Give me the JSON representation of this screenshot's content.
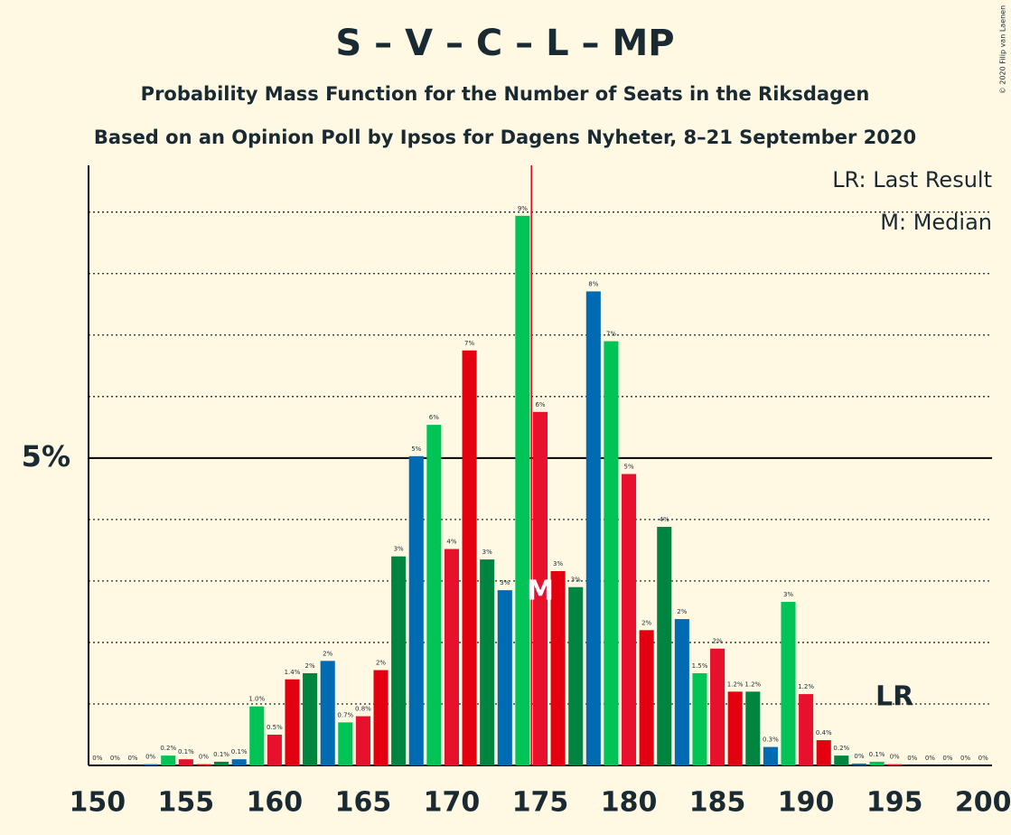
{
  "chart_data": {
    "type": "bar",
    "title": "S – V – C – L – MP",
    "subtitle": "Probability Mass Function for the Number of Seats in the Riksdagen",
    "subtitle2": "Based on an Opinion Poll by Ipsos for Dagens Nyheter, 8–21 September 2020",
    "credit": "© 2020 Filip van Laenen",
    "legend": [
      "LR: Last Result",
      "M: Median"
    ],
    "x": [
      150,
      151,
      152,
      153,
      154,
      155,
      156,
      157,
      158,
      159,
      160,
      161,
      162,
      163,
      164,
      165,
      166,
      167,
      168,
      169,
      170,
      171,
      172,
      173,
      174,
      175,
      176,
      177,
      178,
      179,
      180,
      181,
      182,
      183,
      184,
      185,
      186,
      187,
      188,
      189,
      190,
      191,
      192,
      193,
      194,
      195,
      196,
      197,
      198,
      199,
      200
    ],
    "values": [
      0,
      0,
      0,
      0.02,
      0.16,
      0.1,
      0.02,
      0.06,
      0.1,
      0.96,
      0.5,
      1.4,
      1.5,
      1.7,
      0.7,
      0.8,
      1.55,
      3.4,
      5.03,
      5.54,
      3.52,
      6.75,
      3.35,
      2.85,
      8.94,
      5.75,
      3.16,
      2.9,
      7.71,
      6.9,
      4.74,
      2.2,
      3.88,
      2.38,
      1.5,
      1.9,
      1.2,
      1.2,
      0.3,
      2.66,
      1.16,
      0.41,
      0.16,
      0.03,
      0.06,
      0.02,
      0,
      0,
      0,
      0,
      0
    ],
    "value_labels": [
      "0%",
      "0%",
      "0%",
      "0%",
      "0.2%",
      "0.1%",
      "0%",
      "0.1%",
      "0.1%",
      "1.0%",
      "0.5%",
      "1.4%",
      "2%",
      "2%",
      "0.7%",
      "0.8%",
      "2%",
      "3%",
      "5%",
      "6%",
      "4%",
      "7%",
      "3%",
      "3%",
      "9%",
      "6%",
      "3%",
      "3%",
      "8%",
      "7%",
      "5%",
      "2%",
      "4%",
      "2%",
      "1.5%",
      "2%",
      "1.2%",
      "1.2%",
      "0.3%",
      "3%",
      "1.2%",
      "0.4%",
      "0.2%",
      "0%",
      "0.1%",
      "0%",
      "0%",
      "0%",
      "0%",
      "0%",
      "0%"
    ],
    "color_cycle": [
      "#e8112d",
      "#e3000f",
      "#008540",
      "#006ab3",
      "#00c455"
    ],
    "xlim": [
      149.5,
      200.5
    ],
    "xticks": [
      150,
      155,
      160,
      165,
      170,
      175,
      180,
      185,
      190,
      195,
      200
    ],
    "ylim": [
      0,
      9.76
    ],
    "yticks": [
      {
        "value": 5,
        "label": "5%"
      }
    ],
    "minor_gridlines": [
      1,
      2,
      3,
      4,
      6,
      7,
      8,
      9
    ],
    "median": 175,
    "median_label": "M",
    "median_color": "#e3000f",
    "last_result": 195,
    "last_result_label": "LR"
  }
}
